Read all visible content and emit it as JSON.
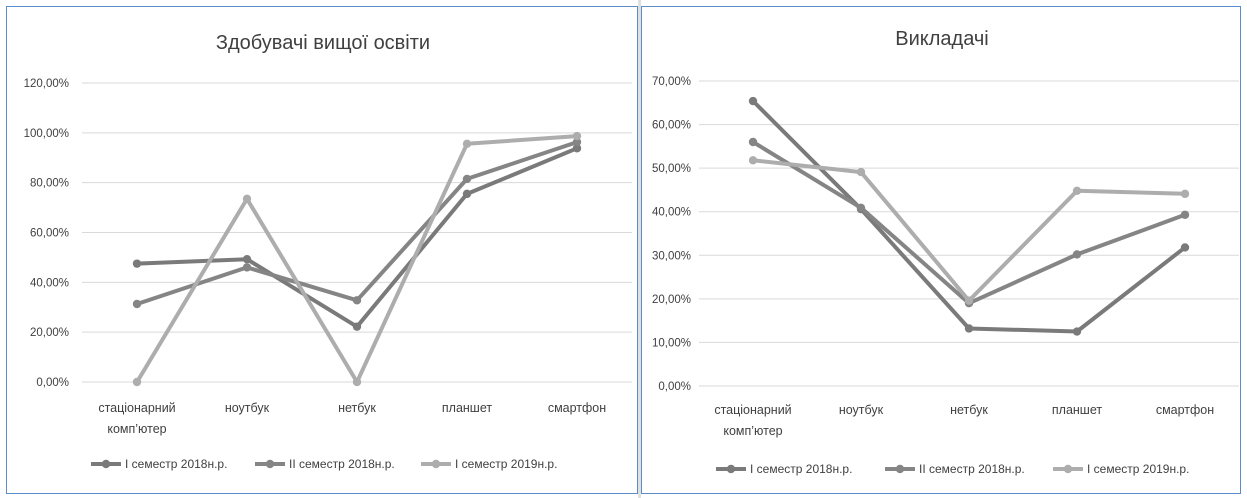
{
  "chart_data": [
    {
      "type": "line",
      "title": "Здобувачі вищої освіти",
      "categories": [
        "стаціонарний комп’ютер",
        "ноутбук",
        "нетбук",
        "планшет",
        "смартфон"
      ],
      "category_lines": [
        [
          "стаціонарний",
          "комп’ютер"
        ],
        [
          "ноутбук"
        ],
        [
          "нетбук"
        ],
        [
          "планшет"
        ],
        [
          "смартфон"
        ]
      ],
      "yticks": [
        "0,00%",
        "20,00%",
        "40,00%",
        "60,00%",
        "80,00%",
        "100,00%",
        "120,00%"
      ],
      "ylim": [
        0,
        120
      ],
      "grid": true,
      "legend_position": "bottom",
      "series": [
        {
          "name": "І семестр 2018н.р.",
          "values": [
            47.5,
            49.3,
            22.2,
            75.5,
            93.8
          ],
          "color": "#7a7a7a"
        },
        {
          "name": "ІІ семестр 2018н.р.",
          "values": [
            31.3,
            46.0,
            32.8,
            81.5,
            96.3
          ],
          "color": "#858585"
        },
        {
          "name": "І семестр 2019н.р.",
          "values": [
            0.0,
            73.5,
            0.0,
            95.6,
            98.7
          ],
          "color": "#adadad"
        }
      ]
    },
    {
      "type": "line",
      "title": "Викладачі",
      "categories": [
        "стаціонарний комп’ютер",
        "ноутбук",
        "нетбук",
        "планшет",
        "смартфон"
      ],
      "category_lines": [
        [
          "стаціонарний",
          "комп’ютер"
        ],
        [
          "ноутбук"
        ],
        [
          "нетбук"
        ],
        [
          "планшет"
        ],
        [
          "смартфон"
        ]
      ],
      "yticks": [
        "0,00%",
        "10,00%",
        "20,00%",
        "30,00%",
        "40,00%",
        "50,00%",
        "60,00%",
        "70,00%"
      ],
      "ylim": [
        0,
        70
      ],
      "grid": true,
      "legend_position": "bottom",
      "series": [
        {
          "name": "І семестр 2018н.р.",
          "values": [
            65.4,
            40.6,
            13.2,
            12.5,
            31.8
          ],
          "color": "#7a7a7a"
        },
        {
          "name": "ІІ семестр 2018н.р.",
          "values": [
            56.0,
            40.9,
            19.0,
            30.2,
            39.3
          ],
          "color": "#858585"
        },
        {
          "name": "І семестр 2019н.р.",
          "values": [
            51.8,
            49.1,
            19.6,
            44.8,
            44.1
          ],
          "color": "#adadad"
        }
      ]
    }
  ]
}
